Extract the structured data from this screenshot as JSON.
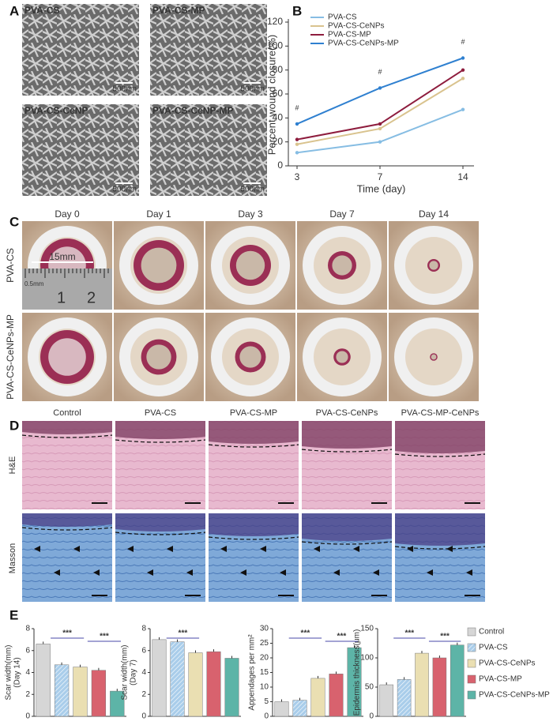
{
  "panel_labels": [
    "A",
    "B",
    "C",
    "D",
    "E"
  ],
  "sem": {
    "labels": [
      "PVA-CS",
      "PVA-CS-MP",
      "PVA-CS-CeNP",
      "PVA-CS-CeNP-MP"
    ],
    "scale_bars": [
      "500nm",
      "500nm",
      "500nm",
      "500nm"
    ]
  },
  "photos": {
    "columns": [
      "Day 0",
      "Day 1",
      "Day 3",
      "Day 7",
      "Day 14"
    ],
    "rows": [
      "PVA-CS",
      "PVA-CS-CeNPs-MP"
    ],
    "scale_label": "15mm",
    "ruler_labels": [
      "0.5mm",
      "1",
      "2"
    ]
  },
  "histology": {
    "columns": [
      "Control",
      "PVA-CS",
      "PVA-CS-MP",
      "PVA-CS-CeNPs",
      "PVA-CS-MP-CeNPs"
    ],
    "rows": [
      "H&E",
      "Masson"
    ]
  },
  "chart_data": [
    {
      "type": "line",
      "xlabel": "Time (day)",
      "ylabel": "Percent wound closure(%)",
      "categories": [
        "3",
        "7",
        "14"
      ],
      "ylim": [
        0,
        120
      ],
      "yticks": [
        0,
        20,
        40,
        60,
        80,
        100,
        120
      ],
      "annotations": [
        "#",
        "#",
        "#"
      ],
      "series": [
        {
          "name": "PVA-CS",
          "color": "#86bde3",
          "values": [
            11,
            20,
            47
          ]
        },
        {
          "name": "PVA-CS-CeNPs",
          "color": "#d9c38e",
          "values": [
            18,
            31,
            73
          ]
        },
        {
          "name": "PVA-CS-MP",
          "color": "#8e1d3e",
          "values": [
            22,
            35,
            80
          ]
        },
        {
          "name": "PVA-CS-CeNPs-MP",
          "color": "#2f80d0",
          "values": [
            35,
            65,
            90
          ]
        }
      ]
    },
    {
      "type": "bar",
      "categories": [
        "Control",
        "PVA-CS",
        "PVA-CS-CeNPs",
        "PVA-CS-MP",
        "PVA-CS-CeNPs-MP"
      ],
      "colors": [
        "#d6d6d6",
        "#a9cdea",
        "#eadfb2",
        "#d8626e",
        "#5db4a7"
      ],
      "subplots": [
        {
          "ylabel": [
            "Scar width(mm)",
            "(Day 14)"
          ],
          "ylim": [
            0,
            8
          ],
          "yticks": [
            0,
            2,
            4,
            6,
            8
          ],
          "values": [
            6.6,
            4.7,
            4.5,
            4.2,
            2.3
          ],
          "annotations": [
            "***",
            "***"
          ]
        },
        {
          "ylabel": [
            "Scar width(mm)",
            "(Day 7)"
          ],
          "ylim": [
            0,
            8
          ],
          "yticks": [
            0,
            2,
            4,
            6,
            8
          ],
          "values": [
            7.0,
            6.8,
            5.8,
            5.9,
            5.3
          ],
          "annotations": [
            "***"
          ]
        },
        {
          "ylabel": [
            "Appendages per mm²"
          ],
          "ylim": [
            0,
            30
          ],
          "yticks": [
            0,
            5,
            10,
            15,
            20,
            25,
            30
          ],
          "values": [
            5,
            5.5,
            13,
            14.5,
            23.5
          ],
          "annotations": [
            "***",
            "***"
          ]
        },
        {
          "ylabel": [
            "Epidermis thickness(μm)"
          ],
          "ylim": [
            0,
            150
          ],
          "yticks": [
            0,
            50,
            100,
            150
          ],
          "values": [
            54,
            63,
            108,
            100,
            122
          ],
          "annotations": [
            "***",
            "***"
          ]
        }
      ]
    }
  ]
}
